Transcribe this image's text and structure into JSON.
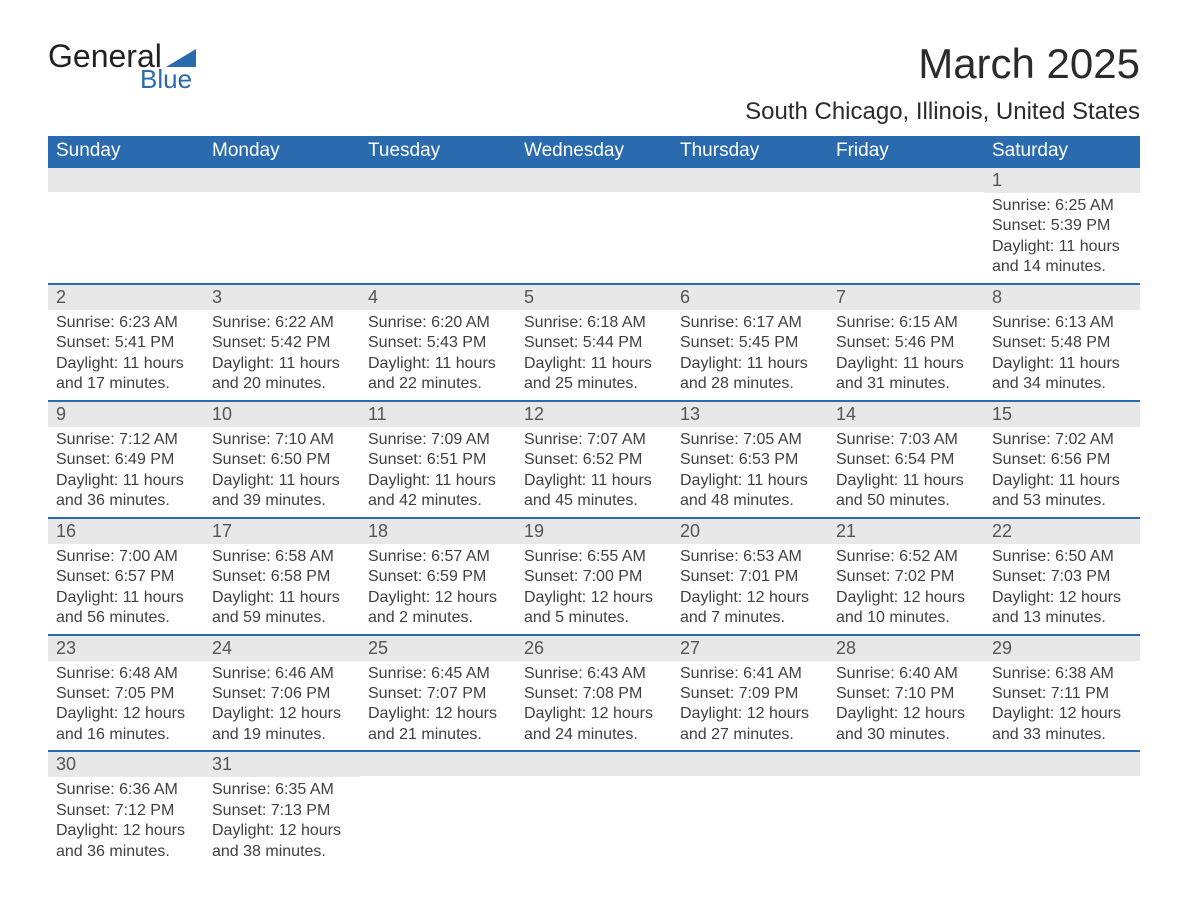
{
  "brand": {
    "name_part1": "General",
    "name_part2": "Blue"
  },
  "title": "March 2025",
  "location": "South Chicago, Illinois, United States",
  "colors": {
    "header_bg": "#2a6bb0",
    "header_text": "#ffffff",
    "daynum_bg": "#e8e8e8",
    "text": "#3a3a3a",
    "row_border": "#2a6bb0",
    "page_bg": "#ffffff"
  },
  "typography": {
    "title_fontsize": 42,
    "location_fontsize": 24,
    "weekday_fontsize": 19,
    "daynum_fontsize": 18,
    "body_fontsize": 16,
    "font_family": "Arial"
  },
  "layout": {
    "columns": 7,
    "rows": 6
  },
  "weekdays": [
    "Sunday",
    "Monday",
    "Tuesday",
    "Wednesday",
    "Thursday",
    "Friday",
    "Saturday"
  ],
  "weeks": [
    [
      null,
      null,
      null,
      null,
      null,
      null,
      {
        "n": "1",
        "sunrise": "6:25 AM",
        "sunset": "5:39 PM",
        "dl1": "11 hours",
        "dl2": "and 14 minutes."
      }
    ],
    [
      {
        "n": "2",
        "sunrise": "6:23 AM",
        "sunset": "5:41 PM",
        "dl1": "11 hours",
        "dl2": "and 17 minutes."
      },
      {
        "n": "3",
        "sunrise": "6:22 AM",
        "sunset": "5:42 PM",
        "dl1": "11 hours",
        "dl2": "and 20 minutes."
      },
      {
        "n": "4",
        "sunrise": "6:20 AM",
        "sunset": "5:43 PM",
        "dl1": "11 hours",
        "dl2": "and 22 minutes."
      },
      {
        "n": "5",
        "sunrise": "6:18 AM",
        "sunset": "5:44 PM",
        "dl1": "11 hours",
        "dl2": "and 25 minutes."
      },
      {
        "n": "6",
        "sunrise": "6:17 AM",
        "sunset": "5:45 PM",
        "dl1": "11 hours",
        "dl2": "and 28 minutes."
      },
      {
        "n": "7",
        "sunrise": "6:15 AM",
        "sunset": "5:46 PM",
        "dl1": "11 hours",
        "dl2": "and 31 minutes."
      },
      {
        "n": "8",
        "sunrise": "6:13 AM",
        "sunset": "5:48 PM",
        "dl1": "11 hours",
        "dl2": "and 34 minutes."
      }
    ],
    [
      {
        "n": "9",
        "sunrise": "7:12 AM",
        "sunset": "6:49 PM",
        "dl1": "11 hours",
        "dl2": "and 36 minutes."
      },
      {
        "n": "10",
        "sunrise": "7:10 AM",
        "sunset": "6:50 PM",
        "dl1": "11 hours",
        "dl2": "and 39 minutes."
      },
      {
        "n": "11",
        "sunrise": "7:09 AM",
        "sunset": "6:51 PM",
        "dl1": "11 hours",
        "dl2": "and 42 minutes."
      },
      {
        "n": "12",
        "sunrise": "7:07 AM",
        "sunset": "6:52 PM",
        "dl1": "11 hours",
        "dl2": "and 45 minutes."
      },
      {
        "n": "13",
        "sunrise": "7:05 AM",
        "sunset": "6:53 PM",
        "dl1": "11 hours",
        "dl2": "and 48 minutes."
      },
      {
        "n": "14",
        "sunrise": "7:03 AM",
        "sunset": "6:54 PM",
        "dl1": "11 hours",
        "dl2": "and 50 minutes."
      },
      {
        "n": "15",
        "sunrise": "7:02 AM",
        "sunset": "6:56 PM",
        "dl1": "11 hours",
        "dl2": "and 53 minutes."
      }
    ],
    [
      {
        "n": "16",
        "sunrise": "7:00 AM",
        "sunset": "6:57 PM",
        "dl1": "11 hours",
        "dl2": "and 56 minutes."
      },
      {
        "n": "17",
        "sunrise": "6:58 AM",
        "sunset": "6:58 PM",
        "dl1": "11 hours",
        "dl2": "and 59 minutes."
      },
      {
        "n": "18",
        "sunrise": "6:57 AM",
        "sunset": "6:59 PM",
        "dl1": "12 hours",
        "dl2": "and 2 minutes."
      },
      {
        "n": "19",
        "sunrise": "6:55 AM",
        "sunset": "7:00 PM",
        "dl1": "12 hours",
        "dl2": "and 5 minutes."
      },
      {
        "n": "20",
        "sunrise": "6:53 AM",
        "sunset": "7:01 PM",
        "dl1": "12 hours",
        "dl2": "and 7 minutes."
      },
      {
        "n": "21",
        "sunrise": "6:52 AM",
        "sunset": "7:02 PM",
        "dl1": "12 hours",
        "dl2": "and 10 minutes."
      },
      {
        "n": "22",
        "sunrise": "6:50 AM",
        "sunset": "7:03 PM",
        "dl1": "12 hours",
        "dl2": "and 13 minutes."
      }
    ],
    [
      {
        "n": "23",
        "sunrise": "6:48 AM",
        "sunset": "7:05 PM",
        "dl1": "12 hours",
        "dl2": "and 16 minutes."
      },
      {
        "n": "24",
        "sunrise": "6:46 AM",
        "sunset": "7:06 PM",
        "dl1": "12 hours",
        "dl2": "and 19 minutes."
      },
      {
        "n": "25",
        "sunrise": "6:45 AM",
        "sunset": "7:07 PM",
        "dl1": "12 hours",
        "dl2": "and 21 minutes."
      },
      {
        "n": "26",
        "sunrise": "6:43 AM",
        "sunset": "7:08 PM",
        "dl1": "12 hours",
        "dl2": "and 24 minutes."
      },
      {
        "n": "27",
        "sunrise": "6:41 AM",
        "sunset": "7:09 PM",
        "dl1": "12 hours",
        "dl2": "and 27 minutes."
      },
      {
        "n": "28",
        "sunrise": "6:40 AM",
        "sunset": "7:10 PM",
        "dl1": "12 hours",
        "dl2": "and 30 minutes."
      },
      {
        "n": "29",
        "sunrise": "6:38 AM",
        "sunset": "7:11 PM",
        "dl1": "12 hours",
        "dl2": "and 33 minutes."
      }
    ],
    [
      {
        "n": "30",
        "sunrise": "6:36 AM",
        "sunset": "7:12 PM",
        "dl1": "12 hours",
        "dl2": "and 36 minutes."
      },
      {
        "n": "31",
        "sunrise": "6:35 AM",
        "sunset": "7:13 PM",
        "dl1": "12 hours",
        "dl2": "and 38 minutes."
      },
      null,
      null,
      null,
      null,
      null
    ]
  ],
  "labels": {
    "sunrise_prefix": "Sunrise: ",
    "sunset_prefix": "Sunset: ",
    "daylight_prefix": "Daylight: "
  }
}
